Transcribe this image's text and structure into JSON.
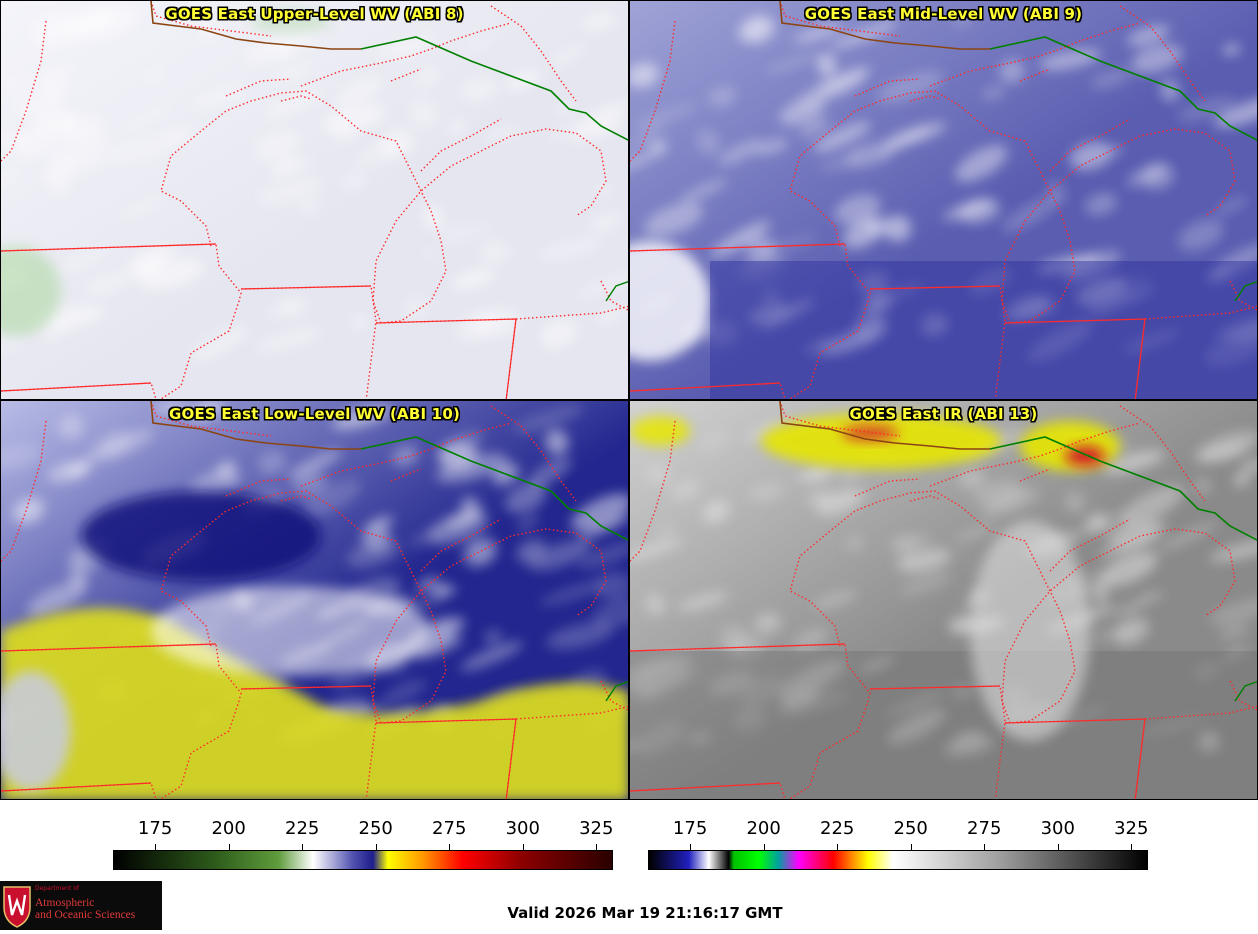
{
  "panels": [
    {
      "id": "p1",
      "title": "GOES East Upper-Level WV (ABI 8)",
      "base": "#e6e6f0",
      "tone": "#f4f4fa",
      "accent": "#b8dcb0"
    },
    {
      "id": "p2",
      "title": "GOES East Mid-Level WV (ABI 9)",
      "base": "#5a5db0",
      "tone": "#9fa3d6",
      "accent": "#ffffff"
    },
    {
      "id": "p3",
      "title": "GOES East Low-Level WV (ABI 10)",
      "base": "#22268e",
      "tone": "#b9bce6",
      "accent": "#d8d820"
    },
    {
      "id": "p4",
      "title": "GOES East IR (ABI 13)",
      "base": "#8a8a8a",
      "tone": "#d2d2d2",
      "accent": "#e6e600"
    }
  ],
  "colorbars": [
    {
      "id": "wv",
      "ticks": [
        "175",
        "200",
        "225",
        "250",
        "275",
        "300",
        "325"
      ],
      "range": [
        160,
        330
      ],
      "stops": [
        [
          "#000000",
          0
        ],
        [
          "#2c5a1a",
          20
        ],
        [
          "#5e9c3c",
          33
        ],
        [
          "#ffffff",
          40
        ],
        [
          "#5050b0",
          48
        ],
        [
          "#1e1e8c",
          52
        ],
        [
          "#ffff00",
          55
        ],
        [
          "#ff9900",
          62
        ],
        [
          "#ff0000",
          70
        ],
        [
          "#8b0000",
          82
        ],
        [
          "#2a0000",
          100
        ]
      ]
    },
    {
      "id": "ir",
      "ticks": [
        "175",
        "200",
        "225",
        "250",
        "275",
        "300",
        "325"
      ],
      "range": [
        160,
        330
      ],
      "stops": [
        [
          "#000000",
          0
        ],
        [
          "#2020c0",
          8
        ],
        [
          "#ffffff",
          12
        ],
        [
          "#000000",
          16
        ],
        [
          "#00c000",
          17
        ],
        [
          "#00ff00",
          22
        ],
        [
          "#00a0a0",
          26
        ],
        [
          "#ff00ff",
          30
        ],
        [
          "#ff0000",
          37
        ],
        [
          "#ffff00",
          44
        ],
        [
          "#ffffff",
          49
        ],
        [
          "#a0a0a0",
          70
        ],
        [
          "#000000",
          100
        ]
      ]
    }
  ],
  "valid_time": "Valid 2026 Mar 19 21:16:17 GMT",
  "logo": {
    "dept": "Department of",
    "line1": "Atmospheric",
    "line2": "and Oceanic Sciences"
  },
  "colors": {
    "border": "#ff2a2a",
    "international": "#008000",
    "coast": "#8b4513"
  }
}
